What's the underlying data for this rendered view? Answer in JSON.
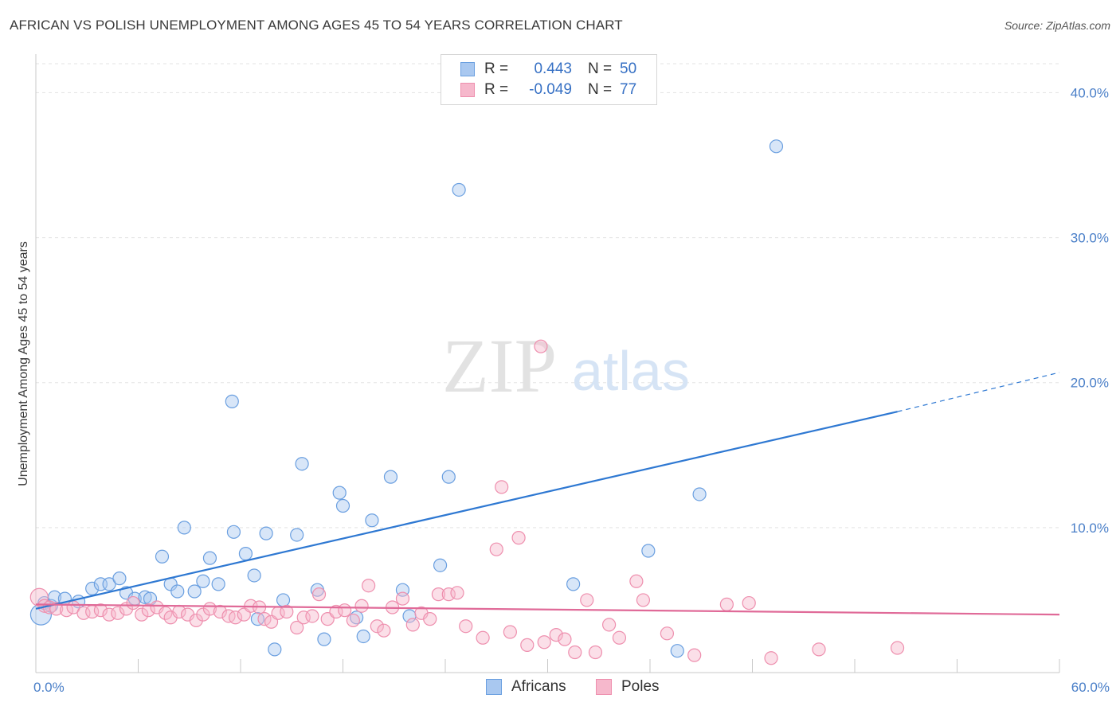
{
  "title": "AFRICAN VS POLISH UNEMPLOYMENT AMONG AGES 45 TO 54 YEARS CORRELATION CHART",
  "source": "Source: ZipAtlas.com",
  "legend": {
    "rows": [
      {
        "label": "R =",
        "r_value": "0.443",
        "n_label": "N =",
        "n_value": "50",
        "color": "#a9c8f0"
      },
      {
        "label": "R =",
        "r_value": "-0.049",
        "n_label": "N =",
        "n_value": "77",
        "color": "#f6b8cc"
      }
    ]
  },
  "bottom_legend": [
    {
      "name": "Africans",
      "color": "#a9c8f0"
    },
    {
      "name": "Poles",
      "color": "#f6b8cc"
    }
  ],
  "chart_data": {
    "type": "scatter",
    "title": "AFRICAN VS POLISH UNEMPLOYMENT AMONG AGES 45 TO 54 YEARS CORRELATION CHART",
    "xlabel": "",
    "ylabel": "Unemployment Among Ages 45 to 54 years",
    "xlim": [
      0,
      60
    ],
    "ylim": [
      0,
      42
    ],
    "x_tick_labels": [
      "0.0%",
      "60.0%"
    ],
    "y_ticks": [
      10,
      20,
      30,
      40
    ],
    "y_tick_labels": [
      "10.0%",
      "20.0%",
      "30.0%",
      "40.0%"
    ],
    "grid": true,
    "watermark": {
      "zip": "ZIP",
      "atlas": "atlas"
    },
    "series": [
      {
        "name": "Africans",
        "color": "#6a9fe0",
        "fill": "#a9c8f0",
        "line_color": "#2e78d2",
        "trend": {
          "x0": 0,
          "y0": 4.4,
          "x1": 50.5,
          "y1": 18.0,
          "dash_to_x": 60,
          "dash_to_y": 20.7
        },
        "points": [
          [
            0.3,
            4.0
          ],
          [
            0.5,
            4.8
          ],
          [
            0.9,
            4.6
          ],
          [
            1.1,
            5.2
          ],
          [
            1.7,
            5.1
          ],
          [
            2.5,
            4.9
          ],
          [
            3.3,
            5.8
          ],
          [
            3.8,
            6.1
          ],
          [
            4.3,
            6.1
          ],
          [
            4.9,
            6.5
          ],
          [
            5.3,
            5.5
          ],
          [
            5.8,
            5.1
          ],
          [
            6.4,
            5.2
          ],
          [
            6.7,
            5.1
          ],
          [
            7.4,
            8.0
          ],
          [
            7.9,
            6.1
          ],
          [
            8.3,
            5.6
          ],
          [
            8.7,
            10.0
          ],
          [
            9.3,
            5.6
          ],
          [
            9.8,
            6.3
          ],
          [
            10.2,
            7.9
          ],
          [
            10.7,
            6.1
          ],
          [
            11.5,
            18.7
          ],
          [
            11.6,
            9.7
          ],
          [
            12.3,
            8.2
          ],
          [
            12.8,
            6.7
          ],
          [
            13.0,
            3.7
          ],
          [
            13.5,
            9.6
          ],
          [
            14.0,
            1.6
          ],
          [
            14.5,
            5.0
          ],
          [
            15.3,
            9.5
          ],
          [
            15.6,
            14.4
          ],
          [
            16.5,
            5.7
          ],
          [
            16.9,
            2.3
          ],
          [
            17.8,
            12.4
          ],
          [
            18.0,
            11.5
          ],
          [
            18.8,
            3.8
          ],
          [
            19.2,
            2.5
          ],
          [
            19.7,
            10.5
          ],
          [
            20.8,
            13.5
          ],
          [
            21.5,
            5.7
          ],
          [
            21.9,
            3.9
          ],
          [
            23.7,
            7.4
          ],
          [
            24.2,
            13.5
          ],
          [
            24.8,
            33.3
          ],
          [
            31.5,
            6.1
          ],
          [
            35.9,
            8.4
          ],
          [
            37.6,
            1.5
          ],
          [
            38.9,
            12.3
          ],
          [
            43.4,
            36.3
          ]
        ]
      },
      {
        "name": "Poles",
        "color": "#ee8fae",
        "fill": "#f6b8cc",
        "line_color": "#e06a98",
        "trend": {
          "x0": 0,
          "y0": 4.7,
          "x1": 60,
          "y1": 4.0
        },
        "points": [
          [
            0.2,
            5.2
          ],
          [
            0.5,
            4.6
          ],
          [
            0.8,
            4.5
          ],
          [
            1.2,
            4.4
          ],
          [
            1.8,
            4.3
          ],
          [
            2.2,
            4.5
          ],
          [
            2.8,
            4.1
          ],
          [
            3.3,
            4.2
          ],
          [
            3.8,
            4.3
          ],
          [
            4.3,
            4.0
          ],
          [
            4.8,
            4.1
          ],
          [
            5.3,
            4.4
          ],
          [
            5.7,
            4.8
          ],
          [
            6.2,
            4.0
          ],
          [
            6.6,
            4.3
          ],
          [
            7.1,
            4.5
          ],
          [
            7.6,
            4.1
          ],
          [
            7.9,
            3.8
          ],
          [
            8.4,
            4.2
          ],
          [
            8.9,
            4.0
          ],
          [
            9.4,
            3.6
          ],
          [
            9.8,
            4.0
          ],
          [
            10.2,
            4.4
          ],
          [
            10.8,
            4.2
          ],
          [
            11.3,
            3.9
          ],
          [
            11.7,
            3.8
          ],
          [
            12.2,
            4.0
          ],
          [
            12.6,
            4.6
          ],
          [
            13.1,
            4.5
          ],
          [
            13.4,
            3.7
          ],
          [
            13.8,
            3.5
          ],
          [
            14.2,
            4.1
          ],
          [
            14.7,
            4.2
          ],
          [
            15.3,
            3.1
          ],
          [
            15.7,
            3.8
          ],
          [
            16.2,
            3.9
          ],
          [
            16.6,
            5.4
          ],
          [
            17.1,
            3.7
          ],
          [
            17.6,
            4.2
          ],
          [
            18.1,
            4.3
          ],
          [
            18.6,
            3.6
          ],
          [
            19.1,
            4.6
          ],
          [
            19.5,
            6.0
          ],
          [
            20.0,
            3.2
          ],
          [
            20.4,
            2.9
          ],
          [
            20.9,
            4.5
          ],
          [
            21.5,
            5.1
          ],
          [
            22.1,
            3.3
          ],
          [
            22.6,
            4.1
          ],
          [
            23.1,
            3.7
          ],
          [
            23.6,
            5.4
          ],
          [
            24.2,
            5.4
          ],
          [
            24.7,
            5.5
          ],
          [
            25.2,
            3.2
          ],
          [
            26.2,
            2.4
          ],
          [
            27.0,
            8.5
          ],
          [
            27.3,
            12.8
          ],
          [
            27.8,
            2.8
          ],
          [
            28.3,
            9.3
          ],
          [
            28.8,
            1.9
          ],
          [
            29.6,
            22.5
          ],
          [
            29.8,
            2.1
          ],
          [
            30.5,
            2.6
          ],
          [
            31.0,
            2.3
          ],
          [
            31.6,
            1.4
          ],
          [
            32.3,
            5.0
          ],
          [
            32.8,
            1.4
          ],
          [
            33.6,
            3.3
          ],
          [
            34.2,
            2.4
          ],
          [
            35.2,
            6.3
          ],
          [
            35.6,
            5.0
          ],
          [
            37.0,
            2.7
          ],
          [
            38.6,
            1.2
          ],
          [
            40.5,
            4.7
          ],
          [
            41.8,
            4.8
          ],
          [
            43.1,
            1.0
          ],
          [
            45.9,
            1.6
          ],
          [
            50.5,
            1.7
          ]
        ]
      }
    ]
  }
}
